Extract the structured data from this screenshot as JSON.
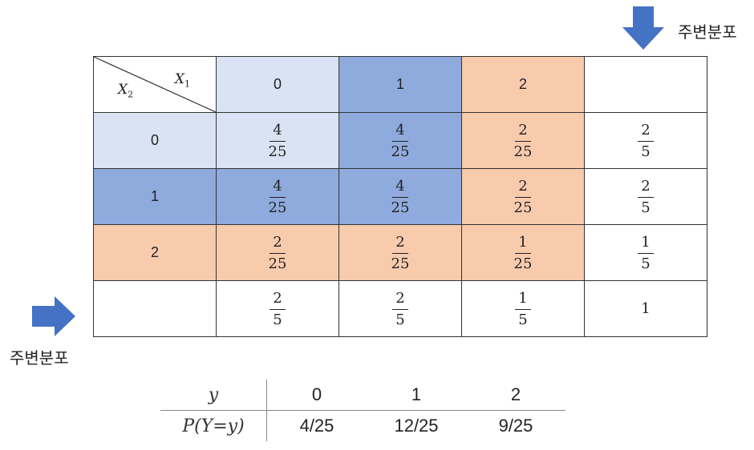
{
  "marginal_label": "주변분포",
  "grid": {
    "x1_label": "X",
    "x1_sub": "1",
    "x2_label": "X",
    "x2_sub": "2",
    "col_headers": [
      "0",
      "1",
      "2"
    ],
    "row_headers": [
      "0",
      "1",
      "2"
    ],
    "rows": [
      [
        [
          "4",
          "25"
        ],
        [
          "4",
          "25"
        ],
        [
          "2",
          "25"
        ],
        [
          "2",
          "5"
        ]
      ],
      [
        [
          "4",
          "25"
        ],
        [
          "4",
          "25"
        ],
        [
          "2",
          "25"
        ],
        [
          "2",
          "5"
        ]
      ],
      [
        [
          "2",
          "25"
        ],
        [
          "2",
          "25"
        ],
        [
          "1",
          "25"
        ],
        [
          "1",
          "5"
        ]
      ]
    ],
    "col_marginals": [
      [
        "2",
        "5"
      ],
      [
        "2",
        "5"
      ],
      [
        "1",
        "5"
      ]
    ],
    "total": "1"
  },
  "dist_table": {
    "row1_label": "y",
    "row2_label": "P(Y=y)",
    "y_values": [
      "0",
      "1",
      "2"
    ],
    "p_values": [
      "4/25",
      "12/25",
      "9/25"
    ]
  },
  "colors": {
    "light_blue": "#dae3f3",
    "mid_blue": "#8faadc",
    "peach": "#f8cbad",
    "arrow_blue": "#4472c4"
  }
}
